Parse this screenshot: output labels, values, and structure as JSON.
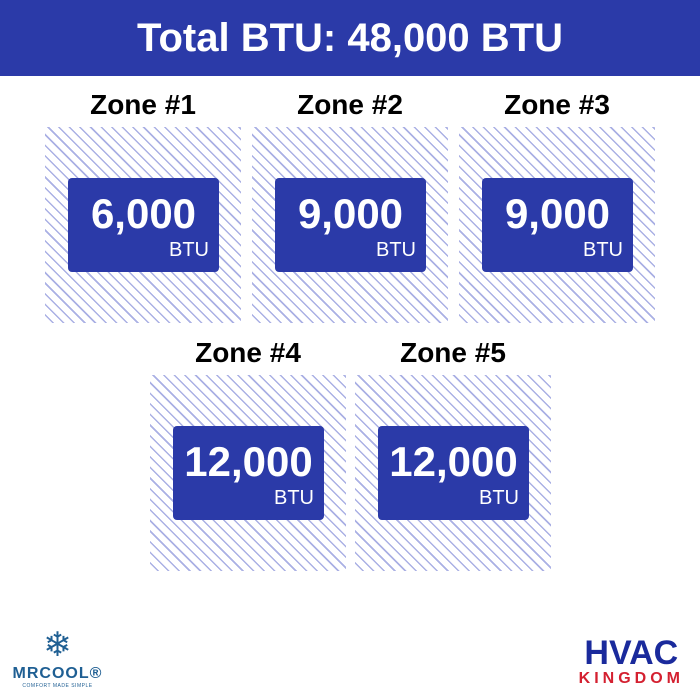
{
  "header": {
    "title": "Total BTU: 48,000 BTU"
  },
  "zones": [
    {
      "title": "Zone #1",
      "value": "6,000",
      "unit": "BTU"
    },
    {
      "title": "Zone #2",
      "value": "9,000",
      "unit": "BTU"
    },
    {
      "title": "Zone #3",
      "value": "9,000",
      "unit": "BTU"
    },
    {
      "title": "Zone #4",
      "value": "12,000",
      "unit": "BTU"
    },
    {
      "title": "Zone #5",
      "value": "12,000",
      "unit": "BTU"
    }
  ],
  "logos": {
    "left_name": "MRCOOL®",
    "left_tagline": "COMFORT MADE SIMPLE",
    "right_top": "HVAC",
    "right_bottom": "KINGDOM"
  },
  "colors": {
    "primary": "#2b3aa8",
    "hatch": "#aab0e4",
    "kingdom_red": "#d42030"
  }
}
